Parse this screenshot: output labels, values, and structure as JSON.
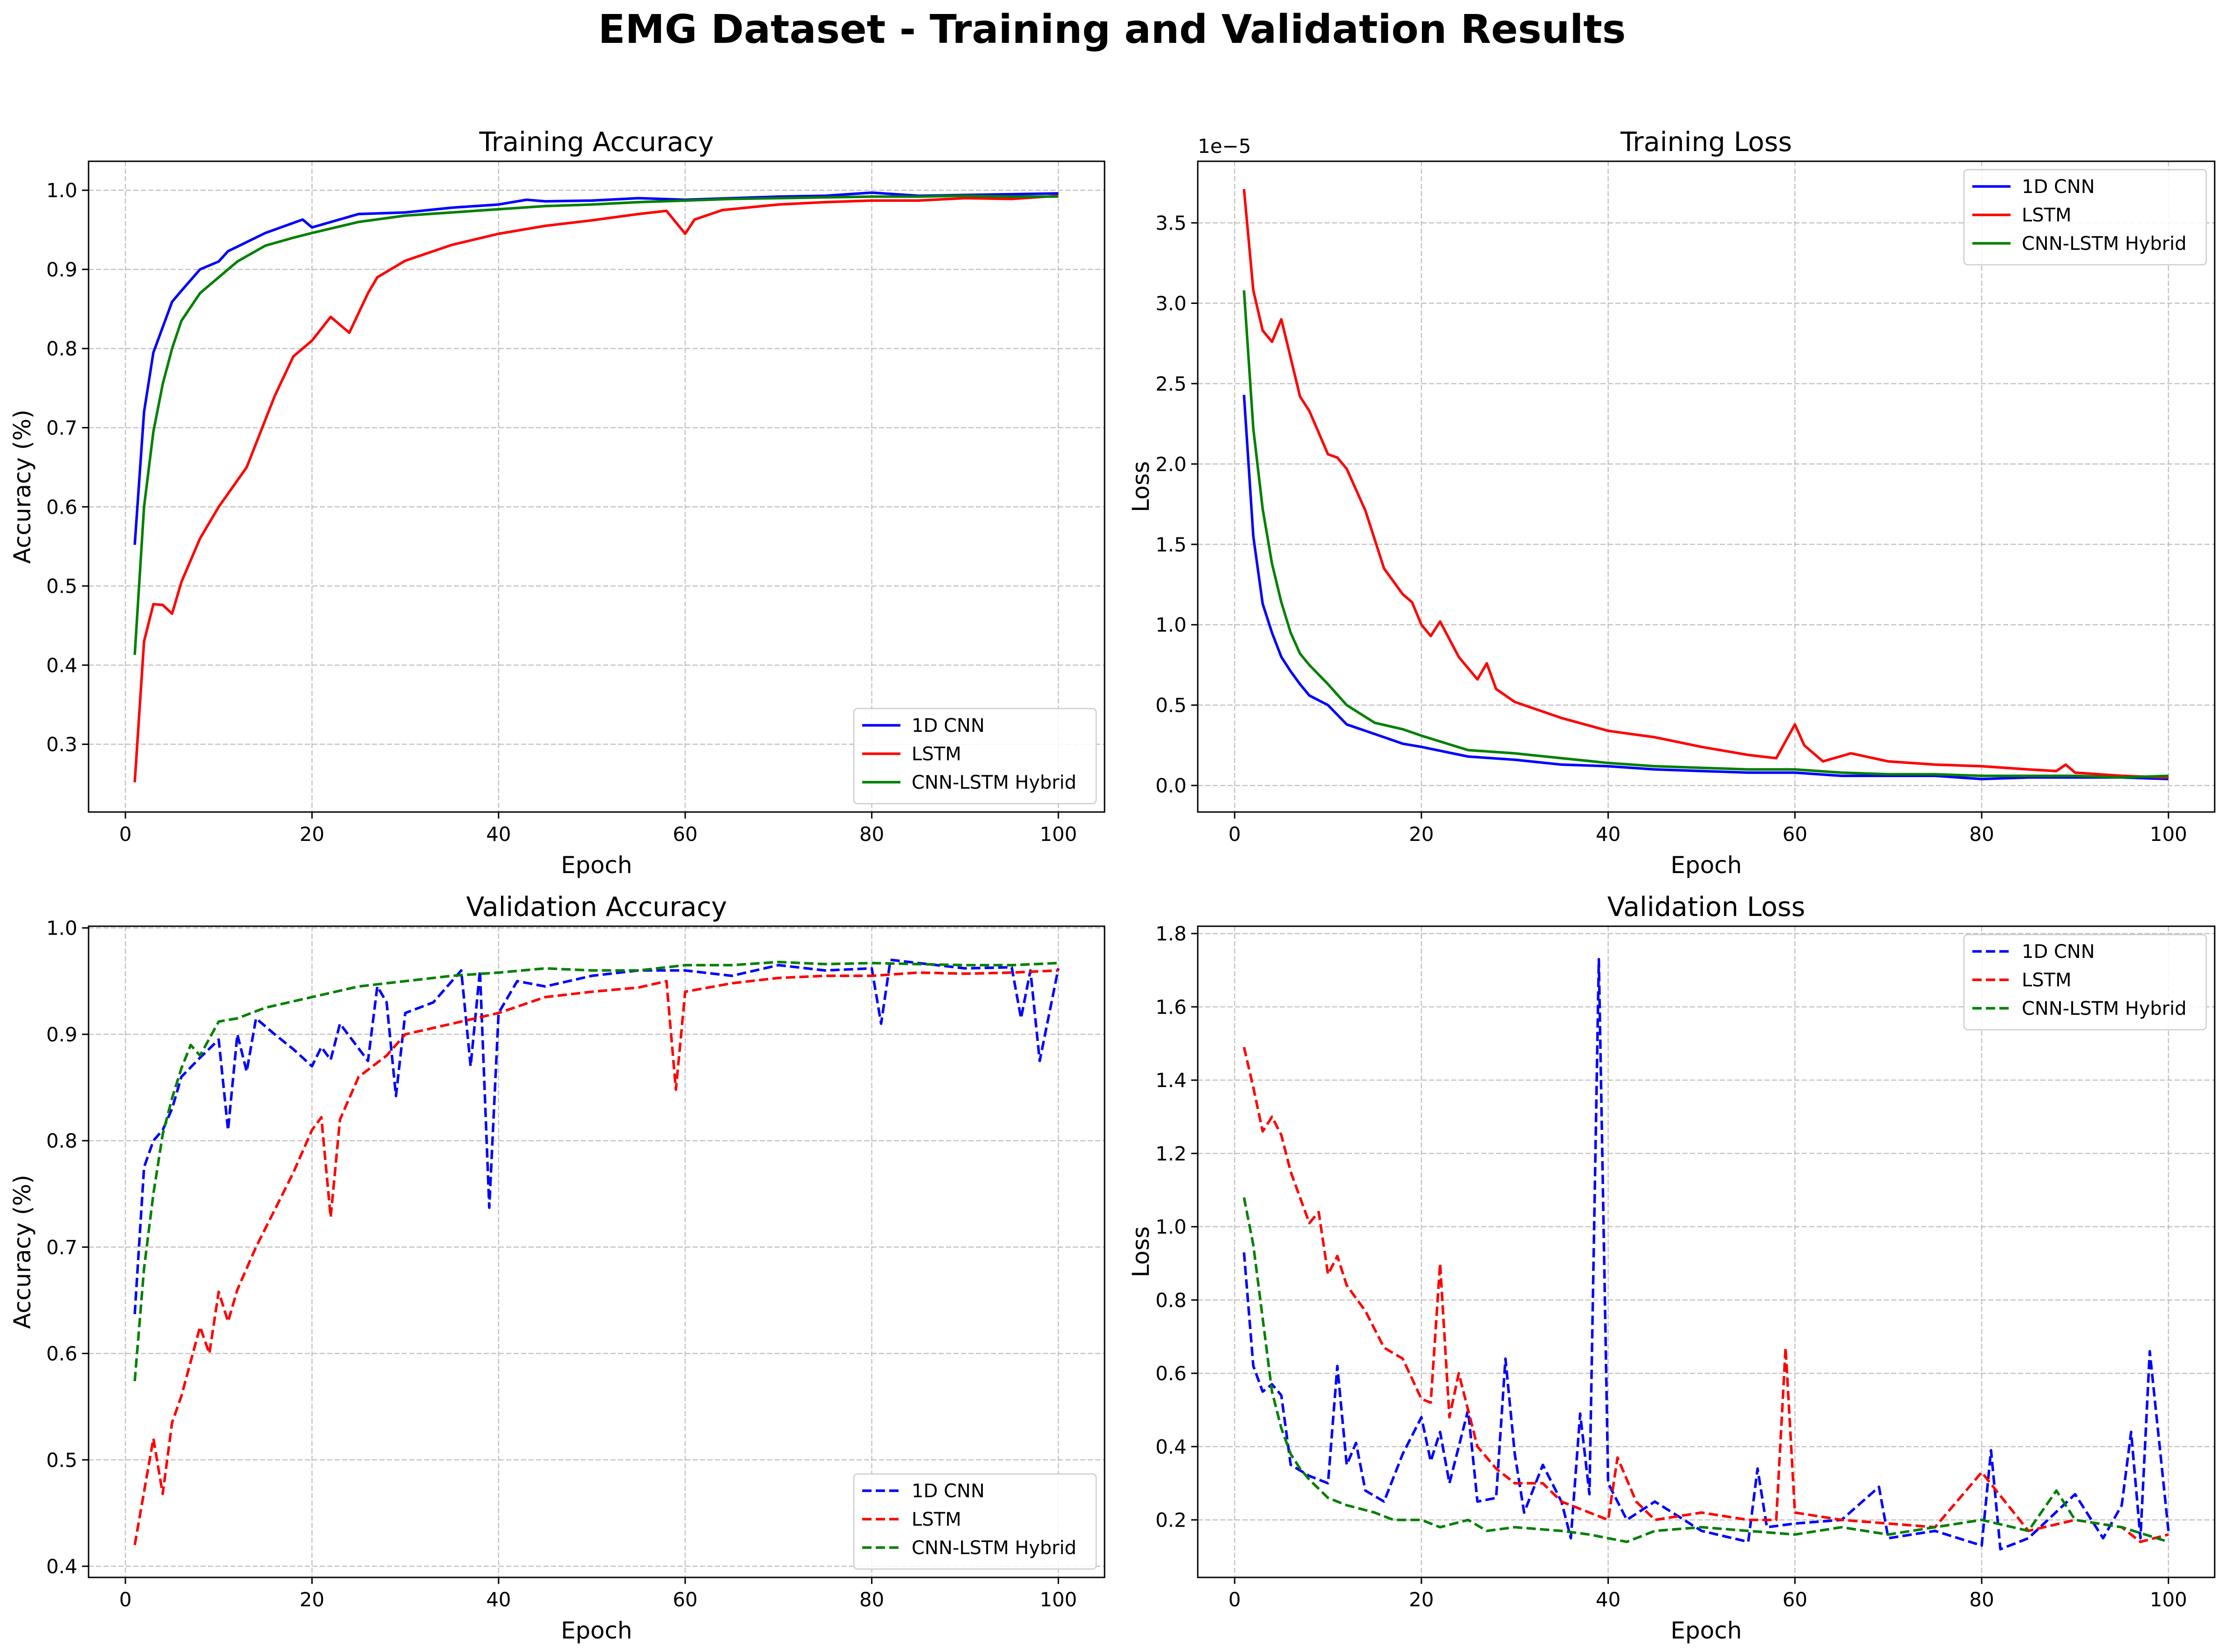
{
  "suptitle": "EMG Dataset - Training and Validation Results",
  "colors": {
    "1D CNN": "#0000ff",
    "LSTM": "#ff0000",
    "CNN-LSTM Hybrid": "#008000"
  },
  "chart_data": [
    {
      "type": "line",
      "title": "Training Accuracy",
      "xlabel": "Epoch",
      "ylabel": "Accuracy (%)",
      "xlim": [
        -3.95,
        104.95
      ],
      "ylim": [
        0.2144,
        1.0366
      ],
      "xticks": [
        "0",
        "20",
        "40",
        "60",
        "80",
        "100"
      ],
      "yticks": [
        "0.3",
        "0.4",
        "0.5",
        "0.6",
        "0.7",
        "0.8",
        "0.9",
        "1.0"
      ],
      "grid": true,
      "legend_loc": "lower right",
      "linestyle": "solid",
      "series": [
        {
          "name": "1D CNN",
          "x": [
            1,
            2,
            3,
            5,
            6,
            8,
            10,
            11,
            15,
            19,
            20,
            25,
            30,
            35,
            40,
            43,
            45,
            50,
            55,
            60,
            65,
            70,
            75,
            80,
            85,
            90,
            95,
            100
          ],
          "y": [
            0.552,
            0.72,
            0.795,
            0.859,
            0.873,
            0.9,
            0.91,
            0.923,
            0.946,
            0.963,
            0.953,
            0.97,
            0.972,
            0.978,
            0.982,
            0.988,
            0.986,
            0.987,
            0.99,
            0.988,
            0.99,
            0.992,
            0.993,
            0.997,
            0.993,
            0.994,
            0.995,
            0.996
          ]
        },
        {
          "name": "LSTM",
          "x": [
            1,
            2,
            3,
            4,
            5,
            6,
            8,
            10,
            13,
            16,
            18,
            20,
            22,
            24,
            26,
            27,
            30,
            35,
            40,
            45,
            50,
            55,
            58,
            60,
            61,
            64,
            70,
            75,
            80,
            85,
            90,
            95,
            100
          ],
          "y": [
            0.252,
            0.43,
            0.477,
            0.476,
            0.465,
            0.505,
            0.56,
            0.6,
            0.65,
            0.74,
            0.79,
            0.81,
            0.84,
            0.82,
            0.87,
            0.89,
            0.911,
            0.931,
            0.945,
            0.955,
            0.962,
            0.97,
            0.974,
            0.945,
            0.963,
            0.975,
            0.982,
            0.985,
            0.987,
            0.987,
            0.99,
            0.989,
            0.993
          ]
        },
        {
          "name": "CNN-LSTM Hybrid",
          "x": [
            1,
            2,
            3,
            4,
            5,
            6,
            8,
            10,
            12,
            15,
            18,
            20,
            25,
            30,
            35,
            40,
            45,
            50,
            55,
            60,
            65,
            70,
            75,
            80,
            85,
            90,
            95,
            100
          ],
          "y": [
            0.413,
            0.6,
            0.695,
            0.755,
            0.8,
            0.835,
            0.87,
            0.89,
            0.91,
            0.93,
            0.94,
            0.946,
            0.96,
            0.968,
            0.972,
            0.976,
            0.98,
            0.982,
            0.985,
            0.987,
            0.989,
            0.99,
            0.991,
            0.992,
            0.992,
            0.993,
            0.992,
            0.992
          ]
        }
      ]
    },
    {
      "type": "line",
      "title": "Training Loss",
      "xlabel": "Epoch",
      "ylabel": "Loss",
      "offset_label": "1e−5",
      "xlim": [
        -3.95,
        104.95
      ],
      "ylim": [
        -0.165,
        3.883
      ],
      "xticks": [
        "0",
        "20",
        "40",
        "60",
        "80",
        "100"
      ],
      "yticks": [
        "0.0",
        "0.5",
        "1.0",
        "1.5",
        "2.0",
        "2.5",
        "3.0",
        "3.5"
      ],
      "grid": true,
      "legend_loc": "upper right",
      "linestyle": "solid",
      "series": [
        {
          "name": "1D CNN",
          "x": [
            1,
            2,
            3,
            4,
            5,
            6,
            7,
            8,
            10,
            12,
            15,
            18,
            20,
            25,
            30,
            35,
            40,
            45,
            50,
            55,
            60,
            65,
            70,
            75,
            80,
            85,
            90,
            95,
            100
          ],
          "y": [
            2.43,
            1.55,
            1.13,
            0.95,
            0.8,
            0.71,
            0.63,
            0.56,
            0.5,
            0.38,
            0.32,
            0.26,
            0.24,
            0.18,
            0.16,
            0.13,
            0.12,
            0.1,
            0.09,
            0.08,
            0.08,
            0.06,
            0.06,
            0.06,
            0.04,
            0.05,
            0.05,
            0.05,
            0.04
          ]
        },
        {
          "name": "LSTM",
          "x": [
            1,
            2,
            3,
            4,
            5,
            6,
            7,
            8,
            10,
            11,
            12,
            14,
            16,
            18,
            19,
            20,
            21,
            22,
            24,
            26,
            27,
            28,
            30,
            35,
            40,
            45,
            50,
            55,
            58,
            60,
            61,
            63,
            66,
            70,
            75,
            80,
            85,
            88,
            89,
            90,
            95,
            100
          ],
          "y": [
            3.71,
            3.08,
            2.83,
            2.76,
            2.9,
            2.66,
            2.42,
            2.33,
            2.06,
            2.04,
            1.97,
            1.71,
            1.35,
            1.19,
            1.14,
            1.0,
            0.93,
            1.02,
            0.8,
            0.66,
            0.76,
            0.6,
            0.52,
            0.42,
            0.34,
            0.3,
            0.24,
            0.19,
            0.17,
            0.38,
            0.25,
            0.15,
            0.2,
            0.15,
            0.13,
            0.12,
            0.1,
            0.09,
            0.13,
            0.08,
            0.06,
            0.05
          ]
        },
        {
          "name": "CNN-LSTM Hybrid",
          "x": [
            1,
            2,
            3,
            4,
            5,
            6,
            7,
            8,
            10,
            12,
            15,
            18,
            20,
            25,
            30,
            35,
            40,
            45,
            50,
            55,
            60,
            65,
            70,
            75,
            80,
            85,
            90,
            95,
            100
          ],
          "y": [
            3.08,
            2.22,
            1.72,
            1.38,
            1.14,
            0.95,
            0.82,
            0.75,
            0.63,
            0.5,
            0.39,
            0.35,
            0.31,
            0.22,
            0.2,
            0.17,
            0.14,
            0.12,
            0.11,
            0.1,
            0.1,
            0.08,
            0.07,
            0.07,
            0.06,
            0.06,
            0.06,
            0.05,
            0.06
          ]
        }
      ]
    },
    {
      "type": "line",
      "title": "Validation Accuracy",
      "xlabel": "Epoch",
      "ylabel": "Accuracy (%)",
      "xlim": [
        -3.95,
        104.95
      ],
      "ylim": [
        0.3895,
        1.0016
      ],
      "xticks": [
        "0",
        "20",
        "40",
        "60",
        "80",
        "100"
      ],
      "yticks": [
        "0.4",
        "0.5",
        "0.6",
        "0.7",
        "0.8",
        "0.9",
        "1.0"
      ],
      "grid": true,
      "legend_loc": "lower right",
      "linestyle": "dashed",
      "series": [
        {
          "name": "1D CNN",
          "x": [
            1,
            2,
            3,
            4,
            5,
            6,
            8,
            10,
            11,
            12,
            13,
            14,
            16,
            18,
            20,
            21,
            22,
            23,
            26,
            27,
            28,
            29,
            30,
            33,
            36,
            37,
            38,
            39,
            40,
            42,
            45,
            50,
            55,
            60,
            65,
            70,
            75,
            80,
            81,
            82,
            85,
            90,
            95,
            96,
            97,
            98,
            100
          ],
          "y": [
            0.637,
            0.775,
            0.8,
            0.81,
            0.83,
            0.86,
            0.878,
            0.895,
            0.81,
            0.9,
            0.865,
            0.915,
            0.9,
            0.886,
            0.87,
            0.888,
            0.876,
            0.91,
            0.875,
            0.945,
            0.93,
            0.842,
            0.92,
            0.93,
            0.96,
            0.87,
            0.96,
            0.737,
            0.92,
            0.95,
            0.945,
            0.955,
            0.96,
            0.96,
            0.955,
            0.965,
            0.96,
            0.962,
            0.91,
            0.97,
            0.967,
            0.962,
            0.963,
            0.915,
            0.96,
            0.875,
            0.962
          ]
        },
        {
          "name": "LSTM",
          "x": [
            1,
            2,
            3,
            4,
            5,
            6,
            8,
            9,
            10,
            11,
            12,
            14,
            16,
            18,
            20,
            21,
            22,
            23,
            25,
            28,
            30,
            35,
            40,
            45,
            50,
            55,
            58,
            59,
            60,
            65,
            70,
            75,
            80,
            85,
            90,
            95,
            100
          ],
          "y": [
            0.42,
            0.47,
            0.52,
            0.468,
            0.535,
            0.56,
            0.625,
            0.6,
            0.658,
            0.63,
            0.66,
            0.7,
            0.735,
            0.77,
            0.81,
            0.822,
            0.728,
            0.82,
            0.86,
            0.88,
            0.9,
            0.91,
            0.92,
            0.935,
            0.94,
            0.944,
            0.95,
            0.848,
            0.94,
            0.948,
            0.953,
            0.955,
            0.955,
            0.958,
            0.957,
            0.958,
            0.96
          ]
        },
        {
          "name": "CNN-LSTM Hybrid",
          "x": [
            1,
            2,
            3,
            4,
            5,
            6,
            7,
            8,
            10,
            12,
            15,
            20,
            25,
            30,
            35,
            40,
            45,
            50,
            55,
            60,
            65,
            70,
            75,
            80,
            85,
            90,
            95,
            100
          ],
          "y": [
            0.574,
            0.68,
            0.75,
            0.806,
            0.84,
            0.868,
            0.89,
            0.88,
            0.912,
            0.915,
            0.925,
            0.935,
            0.945,
            0.95,
            0.955,
            0.958,
            0.962,
            0.96,
            0.96,
            0.965,
            0.965,
            0.968,
            0.966,
            0.967,
            0.966,
            0.965,
            0.965,
            0.967
          ]
        }
      ]
    },
    {
      "type": "line",
      "title": "Validation Loss",
      "xlabel": "Epoch",
      "ylabel": "Loss",
      "xlim": [
        -3.95,
        104.95
      ],
      "ylim": [
        0.043,
        1.82
      ],
      "xticks": [
        "0",
        "20",
        "40",
        "60",
        "80",
        "100"
      ],
      "yticks": [
        "0.2",
        "0.4",
        "0.6",
        "0.8",
        "1.0",
        "1.2",
        "1.4",
        "1.6",
        "1.8"
      ],
      "grid": true,
      "legend_loc": "upper right",
      "linestyle": "dashed",
      "series": [
        {
          "name": "1D CNN",
          "x": [
            1,
            2,
            3,
            4,
            5,
            6,
            8,
            10,
            11,
            12,
            13,
            14,
            16,
            18,
            20,
            21,
            22,
            23,
            25,
            26,
            28,
            29,
            30,
            31,
            33,
            35,
            36,
            37,
            38,
            39,
            40,
            42,
            45,
            50,
            55,
            56,
            57,
            60,
            65,
            69,
            70,
            75,
            80,
            81,
            82,
            85,
            90,
            93,
            95,
            96,
            97,
            98,
            100
          ],
          "y": [
            0.93,
            0.62,
            0.55,
            0.57,
            0.54,
            0.35,
            0.32,
            0.3,
            0.62,
            0.35,
            0.41,
            0.28,
            0.25,
            0.38,
            0.48,
            0.36,
            0.44,
            0.3,
            0.5,
            0.25,
            0.26,
            0.64,
            0.38,
            0.22,
            0.35,
            0.25,
            0.15,
            0.49,
            0.27,
            1.73,
            0.3,
            0.2,
            0.25,
            0.17,
            0.14,
            0.34,
            0.18,
            0.19,
            0.2,
            0.29,
            0.15,
            0.17,
            0.13,
            0.39,
            0.12,
            0.15,
            0.27,
            0.15,
            0.24,
            0.44,
            0.15,
            0.66,
            0.17
          ]
        },
        {
          "name": "LSTM",
          "x": [
            1,
            2,
            3,
            4,
            5,
            6,
            8,
            9,
            10,
            11,
            12,
            14,
            16,
            18,
            20,
            21,
            22,
            23,
            24,
            26,
            28,
            30,
            33,
            35,
            40,
            41,
            43,
            45,
            50,
            55,
            58,
            59,
            60,
            65,
            70,
            75,
            80,
            85,
            90,
            95,
            97,
            100
          ],
          "y": [
            1.49,
            1.38,
            1.26,
            1.3,
            1.25,
            1.15,
            1.01,
            1.04,
            0.87,
            0.92,
            0.84,
            0.77,
            0.67,
            0.64,
            0.53,
            0.52,
            0.9,
            0.48,
            0.6,
            0.4,
            0.34,
            0.3,
            0.3,
            0.25,
            0.2,
            0.37,
            0.25,
            0.2,
            0.22,
            0.2,
            0.2,
            0.67,
            0.22,
            0.2,
            0.19,
            0.18,
            0.33,
            0.17,
            0.2,
            0.18,
            0.14,
            0.16
          ]
        },
        {
          "name": "CNN-LSTM Hybrid",
          "x": [
            1,
            2,
            3,
            4,
            5,
            6,
            7,
            8,
            10,
            12,
            15,
            17,
            20,
            22,
            25,
            27,
            30,
            35,
            38,
            40,
            42,
            45,
            50,
            55,
            60,
            65,
            70,
            75,
            80,
            85,
            88,
            90,
            95,
            100
          ],
          "y": [
            1.08,
            0.95,
            0.75,
            0.55,
            0.45,
            0.38,
            0.34,
            0.31,
            0.26,
            0.24,
            0.22,
            0.2,
            0.2,
            0.18,
            0.2,
            0.17,
            0.18,
            0.17,
            0.16,
            0.15,
            0.14,
            0.17,
            0.18,
            0.17,
            0.16,
            0.18,
            0.16,
            0.18,
            0.2,
            0.17,
            0.28,
            0.2,
            0.18,
            0.14
          ]
        }
      ]
    }
  ]
}
